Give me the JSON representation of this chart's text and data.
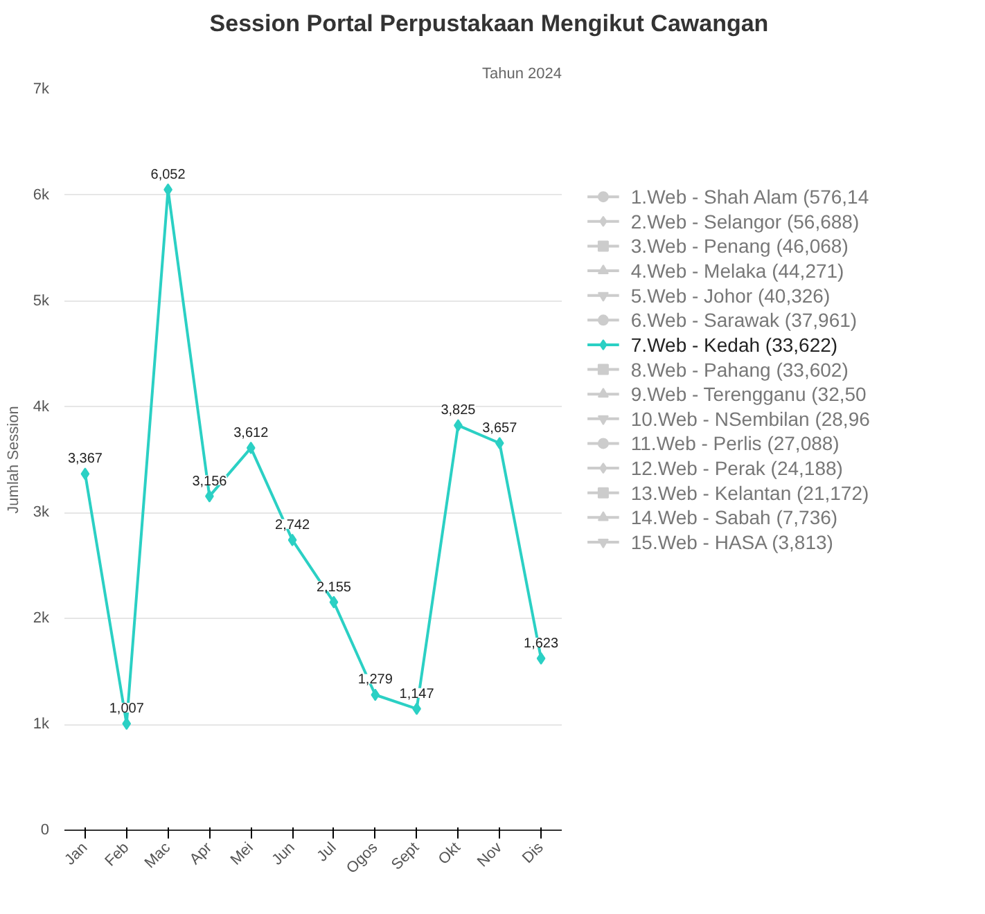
{
  "chart_data": {
    "type": "line",
    "title": "Session Portal Perpustakaan Mengikut Cawangan",
    "subtitle": "Tahun 2024",
    "ylabel": "Jumlah Session",
    "categories": [
      "Jan",
      "Feb",
      "Mac",
      "Apr",
      "Mei",
      "Jun",
      "Jul",
      "Ogos",
      "Sept",
      "Okt",
      "Nov",
      "Dis"
    ],
    "ylim": [
      0,
      7000
    ],
    "yticks": [
      {
        "value": 0,
        "label": "0"
      },
      {
        "value": 1000,
        "label": "1k"
      },
      {
        "value": 2000,
        "label": "2k"
      },
      {
        "value": 3000,
        "label": "3k"
      },
      {
        "value": 4000,
        "label": "4k"
      },
      {
        "value": 5000,
        "label": "5k"
      },
      {
        "value": 6000,
        "label": "6k"
      },
      {
        "value": 7000,
        "label": "7k"
      }
    ],
    "grid": "y",
    "legend": "right",
    "line_style": "solid",
    "series": [
      {
        "name": "1.Web - Shah Alam (576,14",
        "color": "#cccccc",
        "marker": "circle",
        "values": [
          null,
          null,
          null,
          null,
          null,
          null,
          null,
          null,
          null,
          null,
          null,
          null
        ]
      },
      {
        "name": "2.Web - Selangor (56,688)",
        "color": "#cccccc",
        "marker": "diamond",
        "values": [
          null,
          null,
          null,
          null,
          null,
          null,
          null,
          null,
          null,
          null,
          null,
          null
        ]
      },
      {
        "name": "3.Web - Penang (46,068)",
        "color": "#cccccc",
        "marker": "square",
        "values": [
          null,
          null,
          null,
          null,
          null,
          null,
          null,
          null,
          null,
          null,
          null,
          null
        ]
      },
      {
        "name": "4.Web - Melaka (44,271)",
        "color": "#cccccc",
        "marker": "triangle",
        "values": [
          null,
          null,
          null,
          null,
          null,
          null,
          null,
          null,
          null,
          null,
          null,
          null
        ]
      },
      {
        "name": "5.Web - Johor (40,326)",
        "color": "#cccccc",
        "marker": "inverted_triangle",
        "values": [
          null,
          null,
          null,
          null,
          null,
          null,
          null,
          null,
          null,
          null,
          null,
          null
        ]
      },
      {
        "name": "6.Web - Sarawak (37,961)",
        "color": "#cccccc",
        "marker": "circle",
        "values": [
          null,
          null,
          null,
          null,
          null,
          null,
          null,
          null,
          null,
          null,
          null,
          null
        ]
      },
      {
        "name": "7.Web - Kedah (33,622)",
        "color": "#2bd0c4",
        "marker": "diamond",
        "values": [
          3367,
          1007,
          6052,
          3156,
          3612,
          2742,
          2155,
          1279,
          1147,
          3825,
          3657,
          1623
        ],
        "value_labels": [
          "3,367",
          "1,007",
          "6,052",
          "3,156",
          "3,612",
          "2,742",
          "2,155",
          "1,279",
          "1,147",
          "3,825",
          "3,657",
          "1,623"
        ]
      },
      {
        "name": "8.Web - Pahang (33,602)",
        "color": "#cccccc",
        "marker": "square",
        "values": [
          null,
          null,
          null,
          null,
          null,
          null,
          null,
          null,
          null,
          null,
          null,
          null
        ]
      },
      {
        "name": "9.Web - Terengganu (32,50",
        "color": "#cccccc",
        "marker": "triangle",
        "values": [
          null,
          null,
          null,
          null,
          null,
          null,
          null,
          null,
          null,
          null,
          null,
          null
        ]
      },
      {
        "name": "10.Web - NSembilan (28,96",
        "color": "#cccccc",
        "marker": "inverted_triangle",
        "values": [
          null,
          null,
          null,
          null,
          null,
          null,
          null,
          null,
          null,
          null,
          null,
          null
        ]
      },
      {
        "name": "11.Web - Perlis (27,088)",
        "color": "#cccccc",
        "marker": "circle",
        "values": [
          null,
          null,
          null,
          null,
          null,
          null,
          null,
          null,
          null,
          null,
          null,
          null
        ]
      },
      {
        "name": "12.Web - Perak (24,188)",
        "color": "#cccccc",
        "marker": "diamond",
        "values": [
          null,
          null,
          null,
          null,
          null,
          null,
          null,
          null,
          null,
          null,
          null,
          null
        ]
      },
      {
        "name": "13.Web - Kelantan (21,172)",
        "color": "#cccccc",
        "marker": "square",
        "values": [
          null,
          null,
          null,
          null,
          null,
          null,
          null,
          null,
          null,
          null,
          null,
          null
        ]
      },
      {
        "name": "14.Web - Sabah (7,736)",
        "color": "#cccccc",
        "marker": "triangle",
        "values": [
          null,
          null,
          null,
          null,
          null,
          null,
          null,
          null,
          null,
          null,
          null,
          null
        ]
      },
      {
        "name": "15.Web - HASA (3,813)",
        "color": "#cccccc",
        "marker": "inverted_triangle",
        "values": [
          null,
          null,
          null,
          null,
          null,
          null,
          null,
          null,
          null,
          null,
          null,
          null
        ]
      }
    ]
  }
}
